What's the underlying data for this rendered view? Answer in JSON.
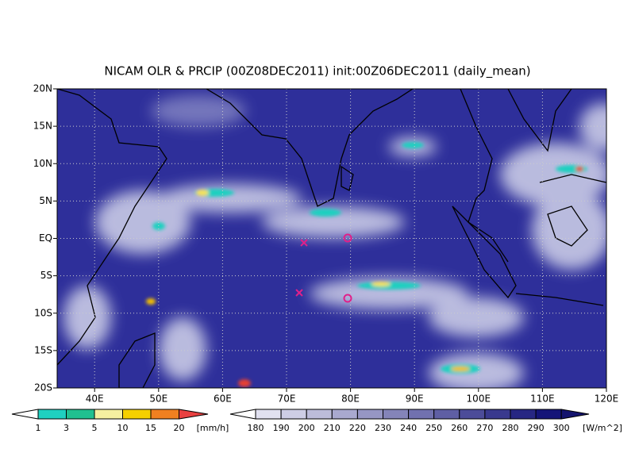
{
  "title": "NICAM OLR & PRCIP (00Z08DEC2011) init:00Z06DEC2011 (daily_mean)",
  "lat_labels": [
    "20N",
    "15N",
    "10N",
    "5N",
    "EQ",
    "5S",
    "10S",
    "15S",
    "20S"
  ],
  "lon_labels": [
    "40E",
    "50E",
    "60E",
    "70E",
    "80E",
    "90E",
    "100E",
    "110E",
    "120E"
  ],
  "precip_colorbar": {
    "labels": [
      1,
      3,
      5,
      10,
      15,
      20
    ],
    "unit": "[mm/h]"
  },
  "olr_colorbar": {
    "labels": [
      180,
      190,
      200,
      210,
      220,
      230,
      240,
      250,
      260,
      270,
      280,
      290,
      300
    ],
    "unit": "[W/m^2]"
  }
}
